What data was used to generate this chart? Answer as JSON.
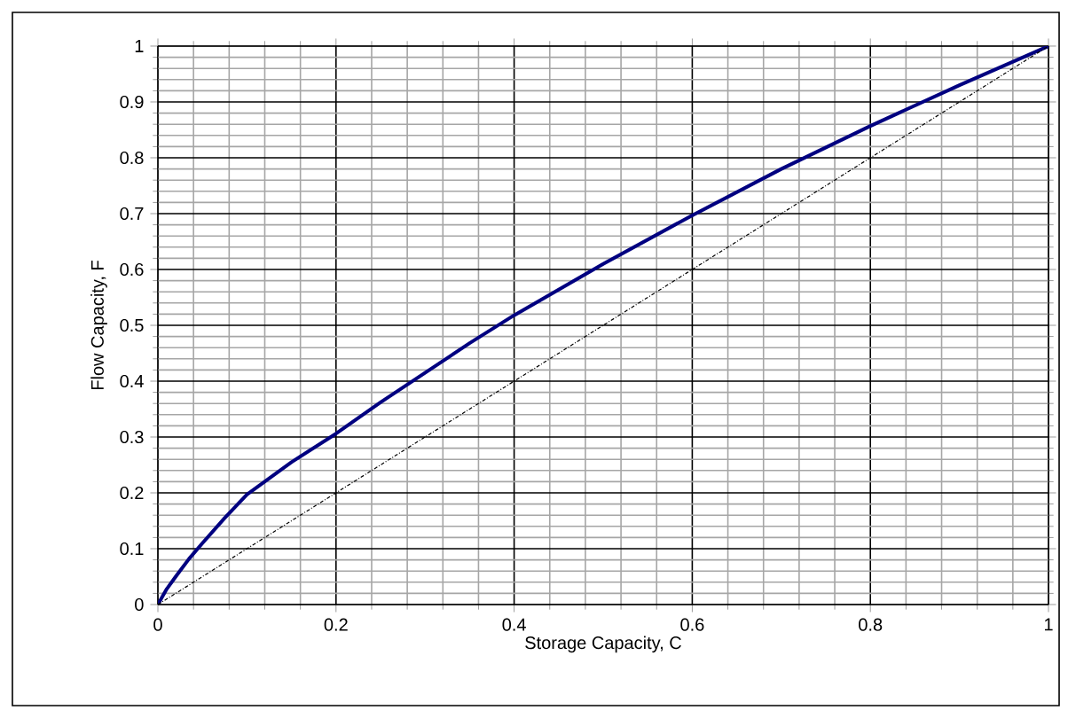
{
  "chart_data": {
    "type": "line",
    "xlabel": "Storage Capacity, C",
    "ylabel": "Flow Capacity, F",
    "xlim": [
      0,
      1
    ],
    "ylim": [
      0,
      1
    ],
    "xticks": [
      0,
      0.2,
      0.4,
      0.6,
      0.8,
      1
    ],
    "yticks": [
      0,
      0.1,
      0.2,
      0.3,
      0.4,
      0.5,
      0.6,
      0.7,
      0.8,
      0.9,
      1
    ],
    "grid": true,
    "marker": "none",
    "series": [
      {
        "color": "#000080",
        "line_style": "solid",
        "x": [
          0,
          0.01,
          0.02,
          0.035,
          0.05,
          0.075,
          0.1,
          0.15,
          0.2,
          0.25,
          0.3,
          0.35,
          0.4,
          0.5,
          0.6,
          0.7,
          0.8,
          0.9,
          1
        ],
        "values": [
          0,
          0.028,
          0.05,
          0.082,
          0.11,
          0.155,
          0.197,
          0.255,
          0.306,
          0.362,
          0.415,
          0.468,
          0.518,
          0.61,
          0.697,
          0.78,
          0.857,
          0.93,
          1
        ]
      },
      {
        "color": "#000000",
        "line_style": "dotted",
        "x": [
          0,
          1
        ],
        "values": [
          0,
          1
        ]
      }
    ]
  }
}
